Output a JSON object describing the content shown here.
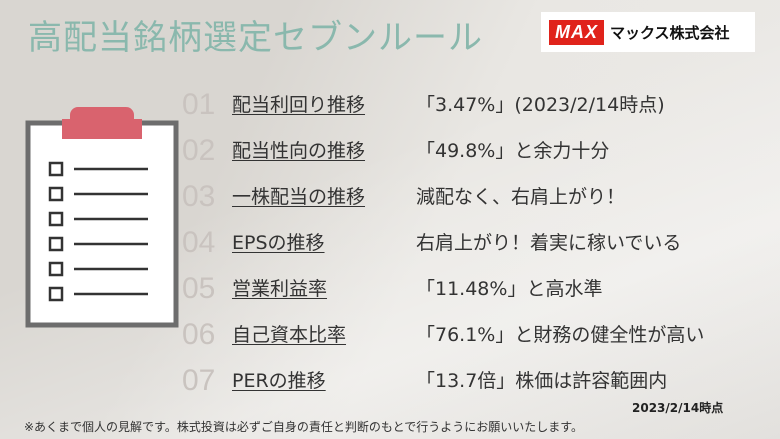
{
  "title": "高配当銘柄選定セブンルール",
  "logo": {
    "mark": "MAX",
    "name": "マックス株式会社"
  },
  "rules": [
    {
      "num": "01",
      "label": "配当利回り推移",
      "desc": "「3.47%」(2023/2/14時点)"
    },
    {
      "num": "02",
      "label": "配当性向の推移",
      "desc": "「49.8%」と余力十分"
    },
    {
      "num": "03",
      "label": "一株配当の推移",
      "desc": "減配なく、右肩上がり！"
    },
    {
      "num": "04",
      "label": "EPSの推移",
      "desc": "右肩上がり！着実に稼いでいる"
    },
    {
      "num": "05",
      "label": "営業利益率",
      "desc": "「11.48%」と高水準"
    },
    {
      "num": "06",
      "label": "自己資本比率",
      "desc": "「76.1%」と財務の健全性が高い"
    },
    {
      "num": "07",
      "label": "PERの推移",
      "desc": "「13.7倍」株価は許容範囲内"
    }
  ],
  "date": "2023/2/14時点",
  "note": "※あくまで個人の見解です。株式投資は必ずご自身の責任と判断のもとで行うようにお願いいたします。",
  "colors": {
    "title": "#8ab8ad",
    "clip": "#d9636e",
    "number": "#c9c3bf"
  },
  "icons": [
    "clipboard-checklist-icon"
  ]
}
